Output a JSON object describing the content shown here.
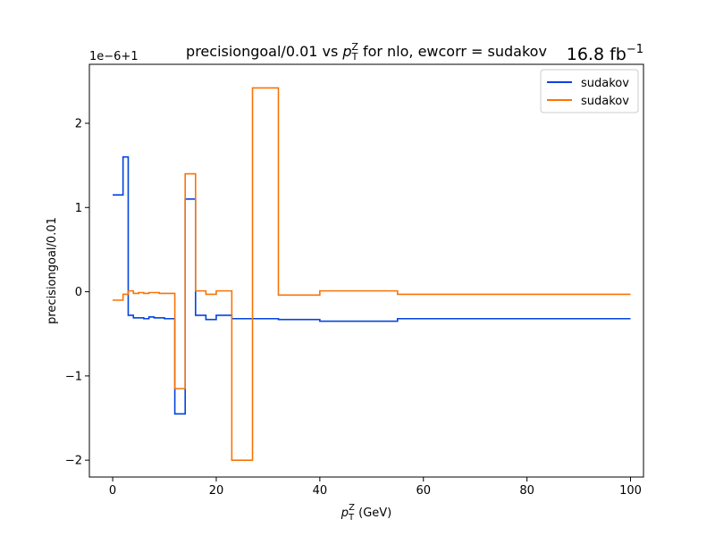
{
  "chart_data": {
    "type": "line",
    "drawstyle": "steps",
    "title_main": "precisiongoal/0.01 vs ",
    "title_var": "p",
    "title_var_sub": "T",
    "title_var_sup": "Z",
    "title_tail": " for nlo, ewcorr = sudakov",
    "lumi_text": "16.8 fb",
    "lumi_sup": "−1",
    "ylabel": "precisiongoal/0.01",
    "xlabel_var": "p",
    "xlabel_sub": "T",
    "xlabel_sup": "Z",
    "xlabel_unit": " (GeV)",
    "y_offset_text": "1e−6+1",
    "y_offset_value": 1,
    "y_scale": 1e-06,
    "xlim": [
      -4.5,
      102.5
    ],
    "ylim": [
      -2.2,
      2.7
    ],
    "xticks": [
      0,
      20,
      40,
      60,
      80,
      100
    ],
    "xtick_labels": [
      "0",
      "20",
      "40",
      "60",
      "80",
      "100"
    ],
    "yticks": [
      -2,
      -1,
      0,
      1,
      2
    ],
    "ytick_labels": [
      "−2",
      "−1",
      "0",
      "1",
      "2"
    ],
    "grid": false,
    "legend_placement": "top-right",
    "bin_edges": [
      0,
      2,
      3,
      4,
      5,
      6,
      7,
      8,
      9,
      10,
      12,
      14,
      16,
      18,
      20,
      23,
      27,
      32,
      40,
      55,
      100
    ],
    "series": [
      {
        "name": "sudakov",
        "color": "#0343df",
        "values": [
          1.15,
          1.6,
          -0.28,
          -0.31,
          -0.31,
          -0.32,
          -0.3,
          -0.31,
          -0.31,
          -0.32,
          -1.45,
          1.1,
          -0.28,
          -0.33,
          -0.28,
          -0.32,
          -0.32,
          -0.33,
          -0.35,
          -0.32
        ]
      },
      {
        "name": "sudakov",
        "color": "#f97306",
        "values": [
          -0.1,
          -0.03,
          0.01,
          -0.02,
          -0.01,
          -0.02,
          -0.01,
          -0.01,
          -0.02,
          -0.02,
          -1.15,
          1.4,
          0.01,
          -0.03,
          0.01,
          -2.0,
          2.42,
          -0.04,
          0.01,
          -0.03
        ]
      }
    ]
  }
}
